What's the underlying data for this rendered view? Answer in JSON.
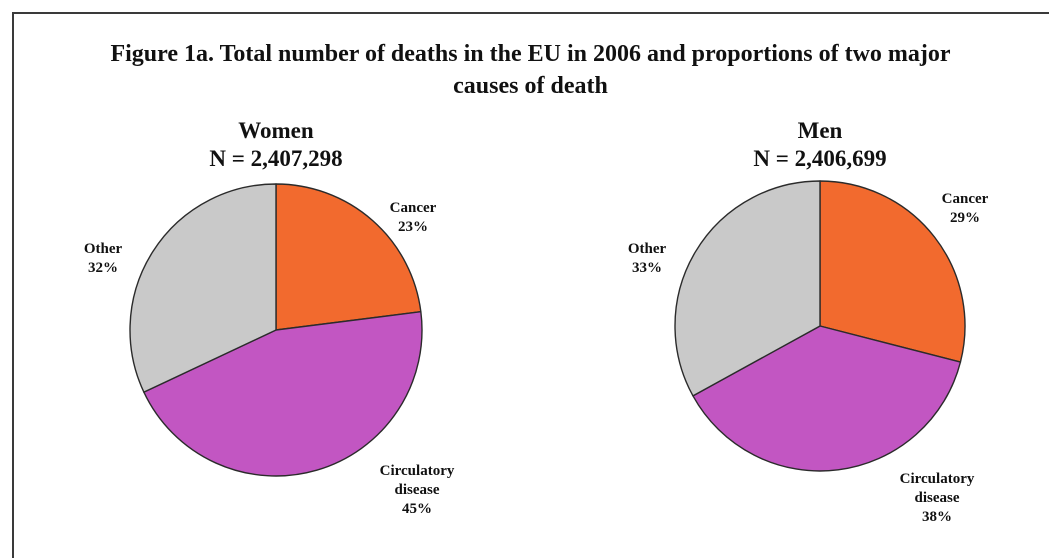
{
  "figure": {
    "title_line1": "Figure 1a. Total number of deaths in the EU in 2006 and proportions of two major",
    "title_line2": "causes of death"
  },
  "colors": {
    "cancer": "#f26a2e",
    "circulatory": "#c256c2",
    "other": "#c9c9c9",
    "outline": "#2b2b2b"
  },
  "chart_data": [
    {
      "type": "pie",
      "title": "Women",
      "subtitle": "N = 2,407,298",
      "slices": [
        {
          "category": "Cancer",
          "label_lines": [
            "Cancer",
            "23%"
          ],
          "value": 23
        },
        {
          "category": "Circulatory disease",
          "label_lines": [
            "Circulatory",
            "disease",
            "45%"
          ],
          "value": 45
        },
        {
          "category": "Other",
          "label_lines": [
            "Other",
            "32%"
          ],
          "value": 32
        }
      ]
    },
    {
      "type": "pie",
      "title": "Men",
      "subtitle": "N = 2,406,699",
      "slices": [
        {
          "category": "Cancer",
          "label_lines": [
            "Cancer",
            "29%"
          ],
          "value": 29
        },
        {
          "category": "Circulatory disease",
          "label_lines": [
            "Circulatory",
            "disease",
            "38%"
          ],
          "value": 38
        },
        {
          "category": "Other",
          "label_lines": [
            "Other",
            "33%"
          ],
          "value": 33
        }
      ]
    }
  ]
}
